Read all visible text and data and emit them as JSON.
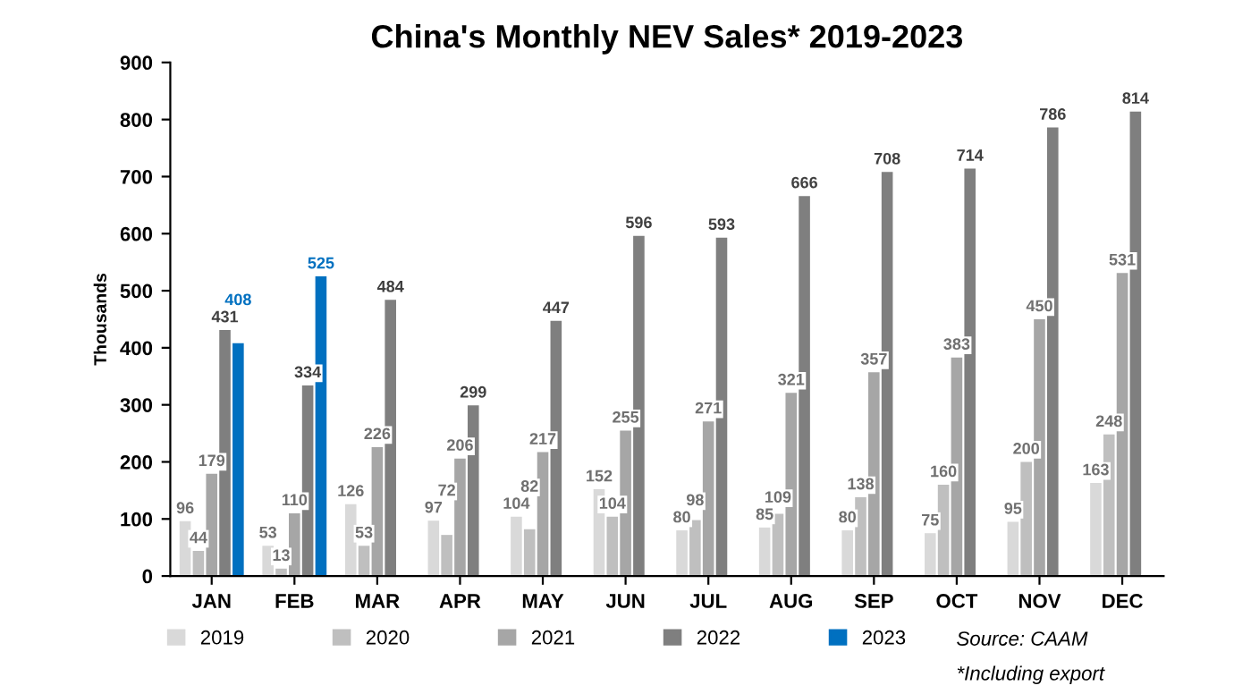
{
  "chart_data": {
    "type": "bar",
    "title": "China's Monthly NEV Sales* 2019-2023",
    "ylabel": "Thousands",
    "categories": [
      "JAN",
      "FEB",
      "MAR",
      "APR",
      "MAY",
      "JUN",
      "JUL",
      "AUG",
      "SEP",
      "OCT",
      "NOV",
      "DEC"
    ],
    "series": [
      {
        "name": "2019",
        "color": "#d9d9d9",
        "values": [
          96,
          53,
          126,
          97,
          104,
          152,
          80,
          85,
          80,
          75,
          95,
          163
        ]
      },
      {
        "name": "2020",
        "color": "#bfbfbf",
        "values": [
          44,
          13,
          53,
          72,
          82,
          104,
          98,
          109,
          138,
          160,
          200,
          248
        ]
      },
      {
        "name": "2021",
        "color": "#a6a6a6",
        "values": [
          179,
          110,
          226,
          206,
          217,
          255,
          271,
          321,
          357,
          383,
          450,
          531
        ]
      },
      {
        "name": "2022",
        "color": "#7f7f7f",
        "values": [
          431,
          334,
          484,
          299,
          447,
          596,
          593,
          666,
          708,
          714,
          786,
          814
        ]
      },
      {
        "name": "2023",
        "color": "#0070c0",
        "values": [
          408,
          525,
          null,
          null,
          null,
          null,
          null,
          null,
          null,
          null,
          null,
          null
        ]
      }
    ],
    "ylim": [
      0,
      900
    ],
    "yticks": [
      0,
      100,
      200,
      300,
      400,
      500,
      600,
      700,
      800,
      900
    ],
    "data_labels": true,
    "grid": false,
    "legend": "bottom",
    "annotations": [
      "Source: CAAM",
      "*Including export"
    ]
  }
}
